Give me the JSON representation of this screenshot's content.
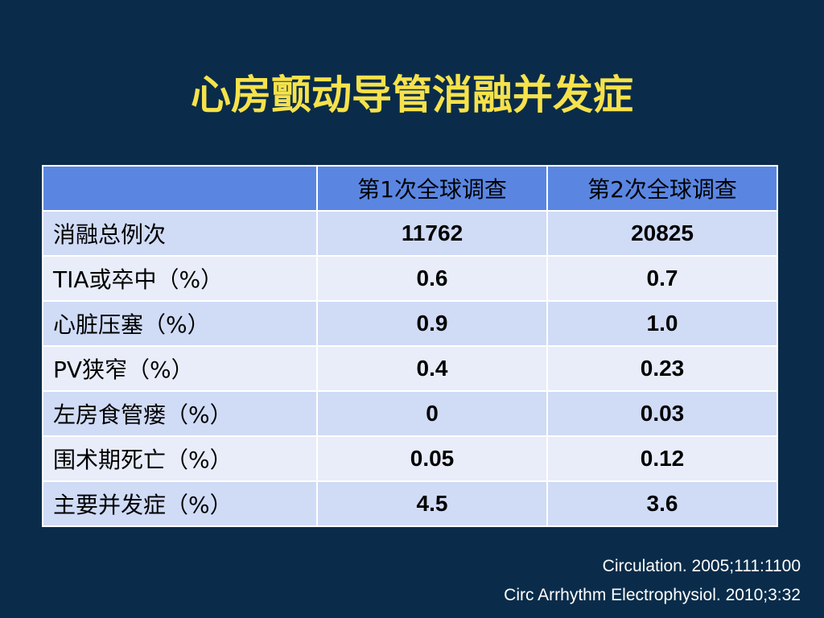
{
  "title": "心房颤动导管消融并发症",
  "table": {
    "header": [
      "第1次全球调查",
      "第2次全球调查"
    ],
    "rows": [
      [
        "消融总例次",
        "11762",
        "20825"
      ],
      [
        "TIA或卒中（%）",
        "0.6",
        "0.7"
      ],
      [
        "心脏压塞（%）",
        "0.9",
        "1.0"
      ],
      [
        "PV狭窄（%）",
        "0.4",
        "0.23"
      ],
      [
        "左房食管瘘（%）",
        "0",
        "0.03"
      ],
      [
        "围术期死亡（%）",
        "0.05",
        "0.12"
      ],
      [
        "主要并发症（%）",
        "4.5",
        "3.6"
      ]
    ]
  },
  "citations": [
    "Circulation. 2005;111:1100",
    "Circ Arrhythm Electrophysiol. 2010;3:32"
  ]
}
